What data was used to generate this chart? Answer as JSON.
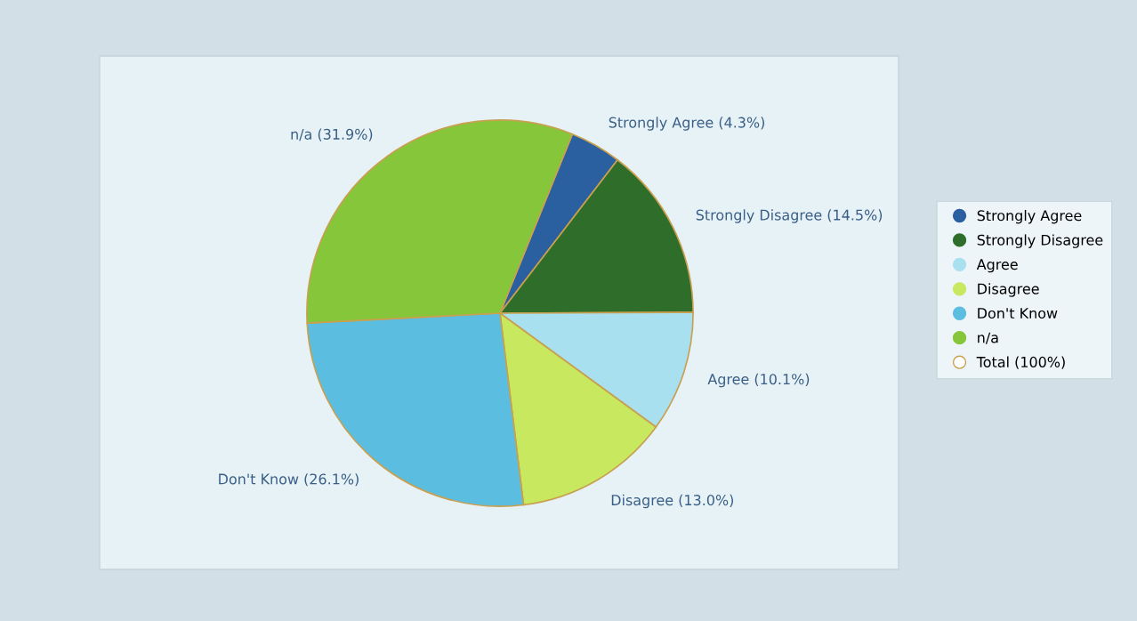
{
  "chart_data": {
    "type": "pie",
    "categories": [
      "Strongly Agree",
      "Strongly Disagree",
      "Agree",
      "Disagree",
      "Don't Know",
      "n/a"
    ],
    "values": [
      4.3,
      14.5,
      10.1,
      13.0,
      26.1,
      31.9
    ],
    "value_labels": [
      "Strongly Agree (4.3%)",
      "Strongly Disagree (14.5%)",
      "Agree (10.1%)",
      "Disagree (13.0%)",
      "Don't Know (26.1%)",
      "n/a (31.9%)"
    ],
    "colors": [
      "#2a5fa0",
      "#2e6e2a",
      "#a8e0f0",
      "#c8e860",
      "#5bbde0",
      "#86c63a"
    ],
    "annotations": [
      "Total (100%)"
    ],
    "legend": "right"
  }
}
